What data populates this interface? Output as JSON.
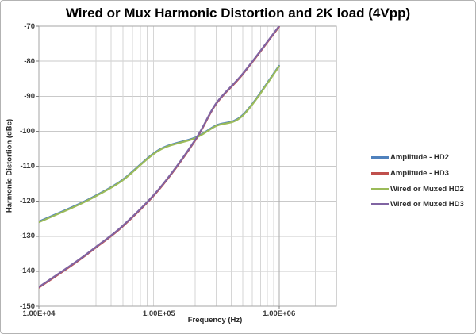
{
  "chart_data": {
    "type": "line",
    "title": "Wired or Mux Harmonic Distortion and 2K load (4Vpp)",
    "xlabel": "Frequency (Hz)",
    "ylabel": "Harmonic Distortion (dBc)",
    "x_scale": "log",
    "xlim": [
      10000,
      3000000
    ],
    "ylim": [
      -150,
      -70
    ],
    "y_tick_step": 10,
    "y_tick_labels": [
      "-70",
      "-80",
      "-90",
      "-100",
      "-110",
      "-120",
      "-130",
      "-140",
      "-150"
    ],
    "x_axis": {
      "tick_values": [
        10000,
        100000,
        1000000
      ],
      "labels": [
        "1.00E+04",
        "1.00E+05",
        "1.00E+06"
      ]
    },
    "grid": "major and minor log gridlines",
    "legend_position": "right",
    "x": [
      10000,
      20000,
      30000,
      50000,
      100000,
      200000,
      300000,
      500000,
      1000000
    ],
    "series": [
      {
        "name": "Amplitude - HD2",
        "color": "#4F81BD",
        "values": [
          -126,
          -121.5,
          -118.5,
          -114,
          -105.5,
          -102,
          -98.5,
          -95.5,
          -81.5
        ]
      },
      {
        "name": "Amplitude - HD3",
        "color": "#C0504D",
        "values": [
          -144.5,
          -137.5,
          -133,
          -127,
          -116.5,
          -102.5,
          -92,
          -83.5,
          -70
        ]
      },
      {
        "name": "Wired or Muxed HD2",
        "color": "#9BBB59",
        "values": [
          -126,
          -121.5,
          -118.5,
          -114,
          -105.5,
          -102,
          -98.5,
          -95.5,
          -81.5
        ]
      },
      {
        "name": "Wired or Muxed HD3",
        "color": "#8064A2",
        "values": [
          -144.5,
          -137.5,
          -133,
          -127,
          -116.5,
          -102.5,
          -92,
          -83.5,
          -70
        ]
      }
    ]
  },
  "style_colors": {
    "major_grid": "#ABABAB",
    "minor_grid": "#D6D6D6",
    "horizontal_grid": "#C9C9C9",
    "plot_border": "#A6A6A6",
    "tick_mark": "#7F7F7F"
  }
}
